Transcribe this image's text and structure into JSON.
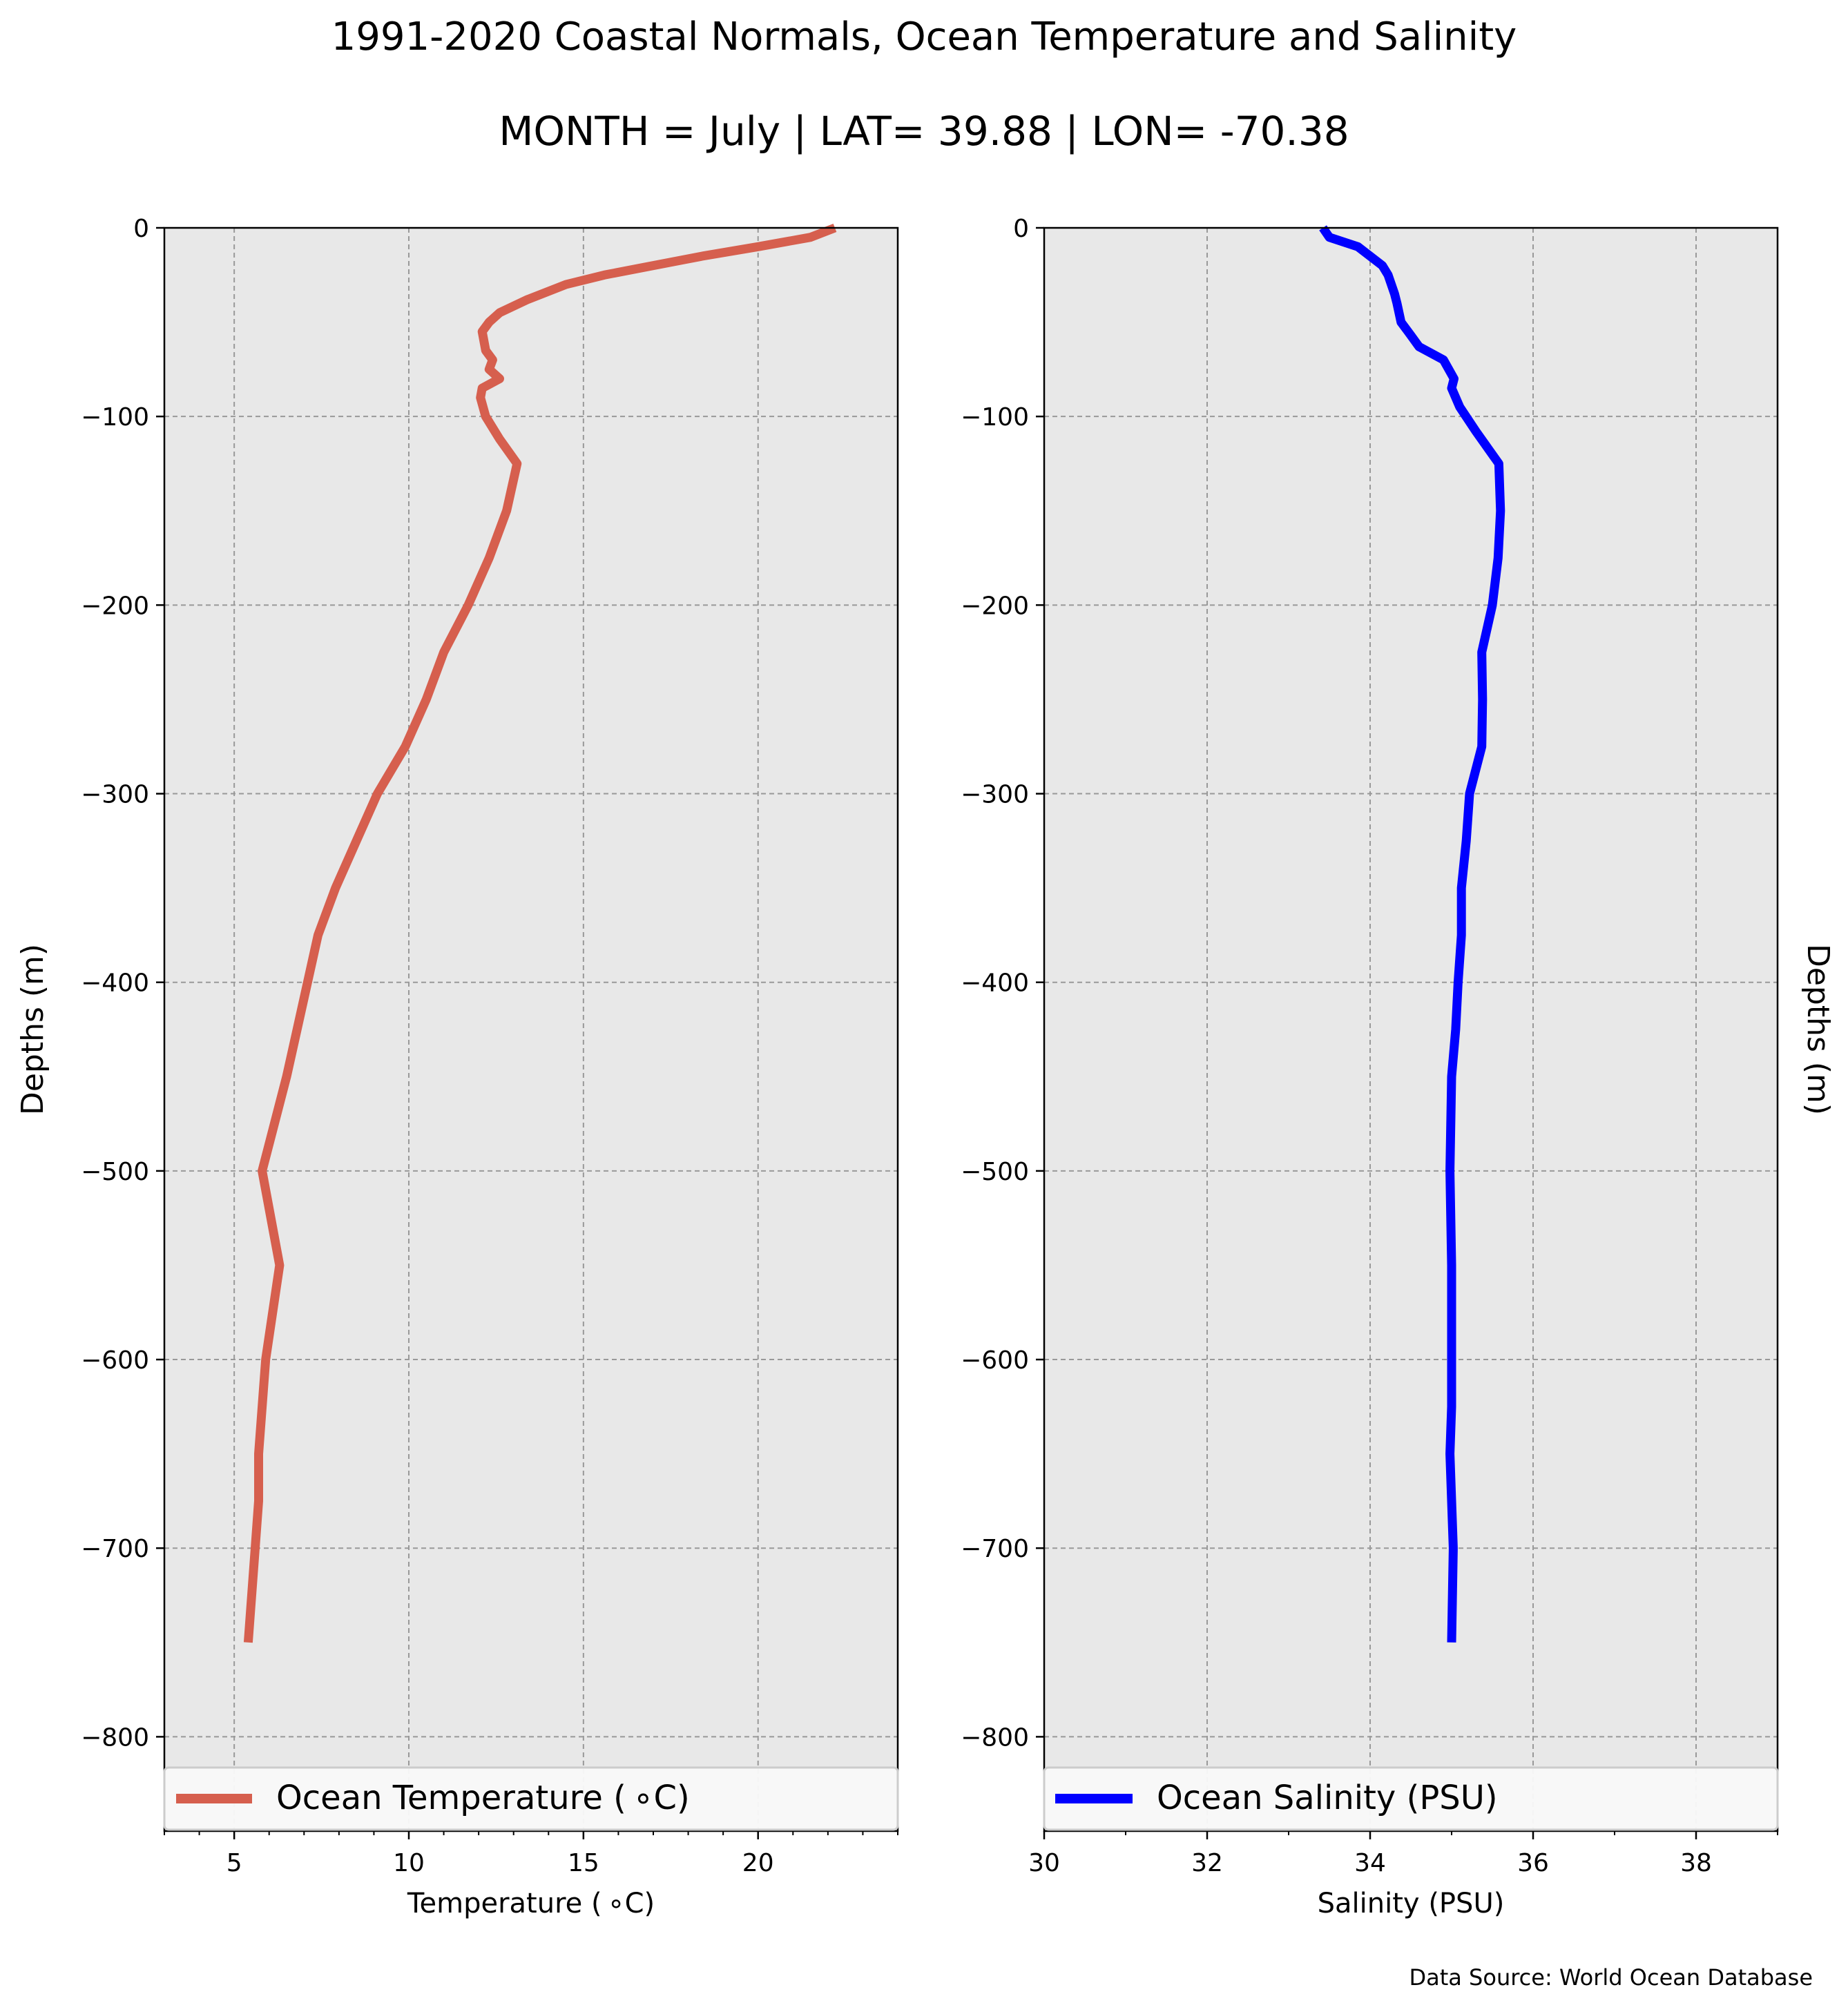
{
  "figure": {
    "title_line1": "1991-2020 Coastal Normals, Ocean Temperature and Salinity",
    "title_line2": "MONTH = July | LAT= 39.88 | LON= -70.38",
    "footer": "Data Source: World Ocean Database",
    "background_color": "#e8e8e8",
    "grid_color": "#999999"
  },
  "chart_data": [
    {
      "type": "line",
      "xlabel": "Temperature ($^\\circ$C)",
      "xlabel_display": "Temperature ( ∘C)",
      "ylabel": "Depths (m)",
      "xlim": [
        3,
        24
      ],
      "ylim": [
        -850,
        0
      ],
      "xticks": [
        5,
        10,
        15,
        20
      ],
      "yticks": [
        0,
        -100,
        -200,
        -300,
        -400,
        -500,
        -600,
        -700,
        -800
      ],
      "ytick_labels": [
        "0",
        "−100",
        "−200",
        "−300",
        "−400",
        "−500",
        "−600",
        "−700",
        "−800"
      ],
      "grid": true,
      "legend_placement": "bottom",
      "series": [
        {
          "name": "Ocean Temperature ( ∘C)",
          "color": "#d65f4e",
          "x": [
            22.2,
            21.5,
            20.0,
            18.4,
            17.0,
            15.6,
            14.5,
            13.4,
            12.6,
            12.3,
            12.1,
            12.2,
            12.4,
            12.3,
            12.6,
            12.1,
            12.05,
            12.2,
            12.6,
            13.1,
            12.8,
            12.3,
            11.7,
            11.0,
            10.5,
            9.9,
            9.1,
            8.5,
            7.9,
            7.4,
            6.8,
            6.5,
            5.8,
            6.3,
            6.1,
            5.9,
            5.7,
            5.7,
            5.6,
            5.4
          ],
          "y": [
            0,
            -5,
            -10,
            -15,
            -20,
            -25,
            -30,
            -38,
            -45,
            -50,
            -55,
            -65,
            -70,
            -75,
            -80,
            -85,
            -90,
            -100,
            -112,
            -125,
            -150,
            -175,
            -200,
            -225,
            -250,
            -275,
            -300,
            -325,
            -350,
            -375,
            -425,
            -450,
            -500,
            -550,
            -575,
            -600,
            -650,
            -675,
            -700,
            -750
          ]
        }
      ]
    },
    {
      "type": "line",
      "xlabel": "Salinity (PSU)",
      "ylabel": "Depths (m)",
      "xlim": [
        30,
        39
      ],
      "ylim": [
        -850,
        0
      ],
      "xticks": [
        30,
        32,
        34,
        36,
        38
      ],
      "yticks": [
        0,
        -100,
        -200,
        -300,
        -400,
        -500,
        -600,
        -700,
        -800
      ],
      "ytick_labels": [
        "0",
        "−100",
        "−200",
        "−300",
        "−400",
        "−500",
        "−600",
        "−700",
        "−800"
      ],
      "grid": true,
      "legend_placement": "bottom",
      "series": [
        {
          "name": "Ocean Salinity (PSU)",
          "color": "#0000ff",
          "x": [
            33.42,
            33.5,
            33.85,
            34.15,
            34.22,
            34.3,
            34.33,
            34.38,
            34.5,
            34.6,
            34.9,
            35.03,
            35.0,
            35.1,
            35.3,
            35.58,
            35.6,
            35.57,
            35.5,
            35.37,
            35.38,
            35.37,
            35.22,
            35.18,
            35.12,
            35.12,
            35.08,
            35.05,
            35.0,
            34.98,
            35.0,
            35.0,
            35.0,
            34.98,
            35.02,
            35.0
          ],
          "y": [
            0,
            -5,
            -10,
            -20,
            -25,
            -35,
            -40,
            -50,
            -57,
            -63,
            -70,
            -80,
            -85,
            -95,
            -108,
            -125,
            -150,
            -175,
            -200,
            -225,
            -250,
            -275,
            -300,
            -325,
            -350,
            -375,
            -400,
            -425,
            -450,
            -500,
            -550,
            -600,
            -625,
            -650,
            -700,
            -750
          ]
        }
      ]
    }
  ]
}
